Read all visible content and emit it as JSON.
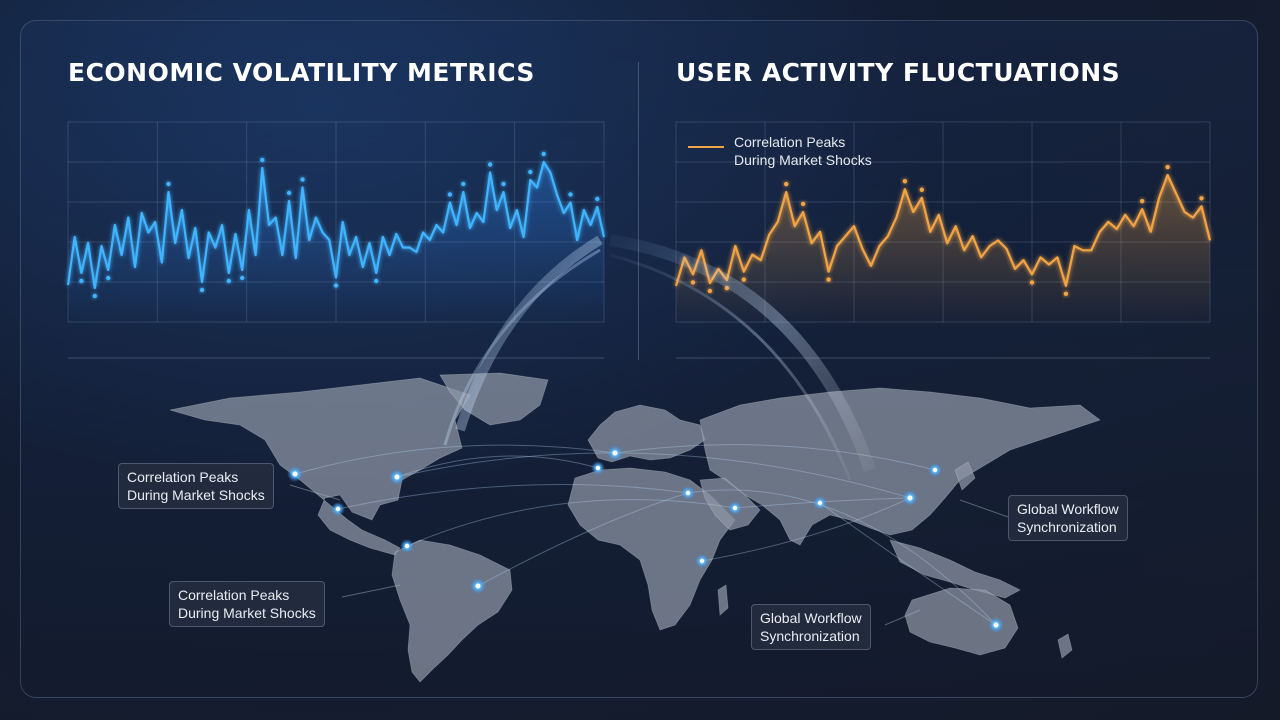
{
  "chart_data": [
    {
      "type": "line",
      "title": "ECONOMIC VOLATILITY METRICS",
      "color": "#3fb4ff",
      "series": [
        {
          "values": [
            10,
            42,
            18,
            38,
            8,
            36,
            20,
            50,
            30,
            55,
            22,
            58,
            45,
            52,
            25,
            72,
            38,
            60,
            28,
            48,
            12,
            45,
            35,
            50,
            18,
            44,
            20,
            60,
            30,
            88,
            50,
            55,
            30,
            66,
            28,
            75,
            40,
            55,
            45,
            40,
            15,
            52,
            30,
            42,
            22,
            38,
            18,
            42,
            30,
            44,
            35,
            35,
            32,
            45,
            40,
            50,
            45,
            65,
            50,
            72,
            48,
            58,
            52,
            85,
            60,
            72,
            48,
            60,
            42,
            80,
            75,
            92,
            85,
            70,
            58,
            65,
            40,
            60,
            50,
            62,
            42
          ]
        }
      ]
    },
    {
      "type": "line",
      "title": "USER ACTIVITY FLUCTUATIONS",
      "color": "#f2a444",
      "legend": [
        "Correlation Peaks",
        "During Market Shocks"
      ],
      "series": [
        {
          "values": [
            10,
            30,
            18,
            35,
            12,
            22,
            14,
            38,
            20,
            32,
            28,
            46,
            55,
            76,
            52,
            62,
            40,
            48,
            20,
            38,
            45,
            52,
            36,
            24,
            38,
            45,
            58,
            78,
            62,
            72,
            48,
            60,
            40,
            52,
            35,
            45,
            30,
            38,
            42,
            36,
            22,
            28,
            18,
            30,
            25,
            30,
            10,
            38,
            35,
            35,
            48,
            55,
            50,
            60,
            52,
            64,
            48,
            72,
            88,
            75,
            62,
            58,
            66,
            42
          ]
        }
      ]
    }
  ],
  "map": {
    "callouts": [
      {
        "line1": "Correlation Peaks",
        "line2": "During Market Shocks"
      },
      {
        "line1": "Correlation Peaks",
        "line2": "During Market Shocks"
      },
      {
        "line1": "Global Workflow",
        "line2": "Synchronization"
      },
      {
        "line1": "Global Workflow",
        "line2": "Synchronization"
      }
    ]
  }
}
